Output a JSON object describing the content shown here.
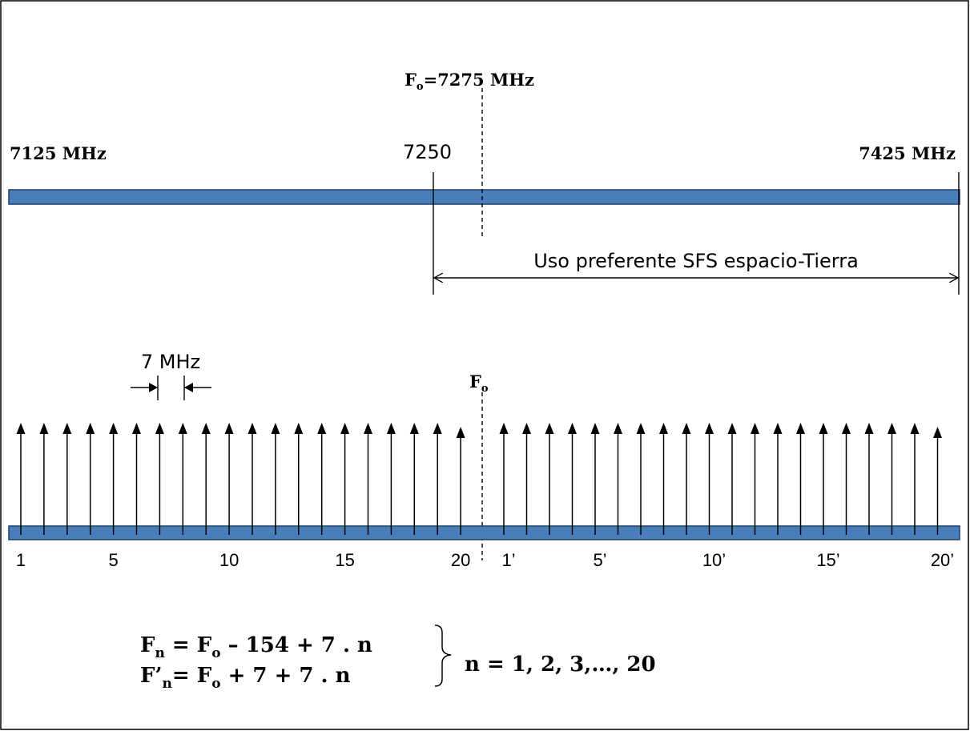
{
  "band": {
    "center_label": "F",
    "center_sub": "o",
    "center_value": "=7275 MHz",
    "left_label": "7125  MHz",
    "right_label": "7425 MHz",
    "mid_label": "7250",
    "preferred_use": "Uso preferente SFS espacio-Tierra",
    "band_color": "#4a7ebb"
  },
  "spacing": {
    "label": "7 MHz"
  },
  "channels": {
    "center_marker": "F",
    "center_marker_sub": "o",
    "lower_count": 20,
    "upper_count": 20,
    "lower_labels": [
      "1",
      "5",
      "10",
      "15",
      "20"
    ],
    "upper_labels": [
      "1’",
      "5’",
      "10’",
      "15’",
      "20’"
    ]
  },
  "formulas": {
    "line1": {
      "a": "F",
      "a_sub": "n",
      "b": " = F",
      "b_sub": "o",
      "c": " – 154 + 7 . n"
    },
    "line2": {
      "a": "F’",
      "a_sub": "n",
      "b": "= F",
      "b_sub": "o",
      "c": " + 7 + 7 . n"
    },
    "range": "n = 1, 2, 3,…, 20"
  }
}
